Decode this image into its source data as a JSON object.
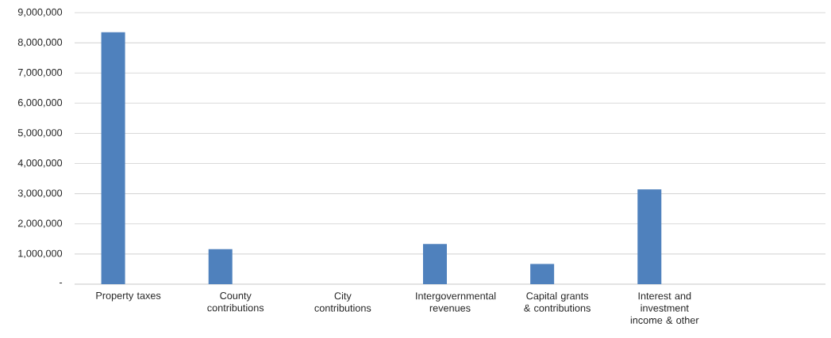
{
  "chart_data": {
    "type": "bar",
    "categories": [
      "Property taxes",
      "County contributions",
      "City contributions",
      "Intergovernmental revenues",
      "Capital grants & contributions",
      "Interest and investment income & other",
      null
    ],
    "values": [
      8350000,
      1160000,
      0,
      1330000,
      670000,
      3140000,
      null
    ],
    "color": "#4f81bd",
    "ylim": [
      0,
      9000000
    ],
    "yticks": [
      {
        "value": 0,
        "label": "-"
      },
      {
        "value": 1000000,
        "label": "1,000,000"
      },
      {
        "value": 2000000,
        "label": "2,000,000"
      },
      {
        "value": 3000000,
        "label": "3,000,000"
      },
      {
        "value": 4000000,
        "label": "4,000,000"
      },
      {
        "value": 5000000,
        "label": "5,000,000"
      },
      {
        "value": 6000000,
        "label": "6,000,000"
      },
      {
        "value": 7000000,
        "label": "7,000,000"
      },
      {
        "value": 8000000,
        "label": "8,000,000"
      },
      {
        "value": 9000000,
        "label": "9,000,000"
      }
    ],
    "grid": "y"
  }
}
